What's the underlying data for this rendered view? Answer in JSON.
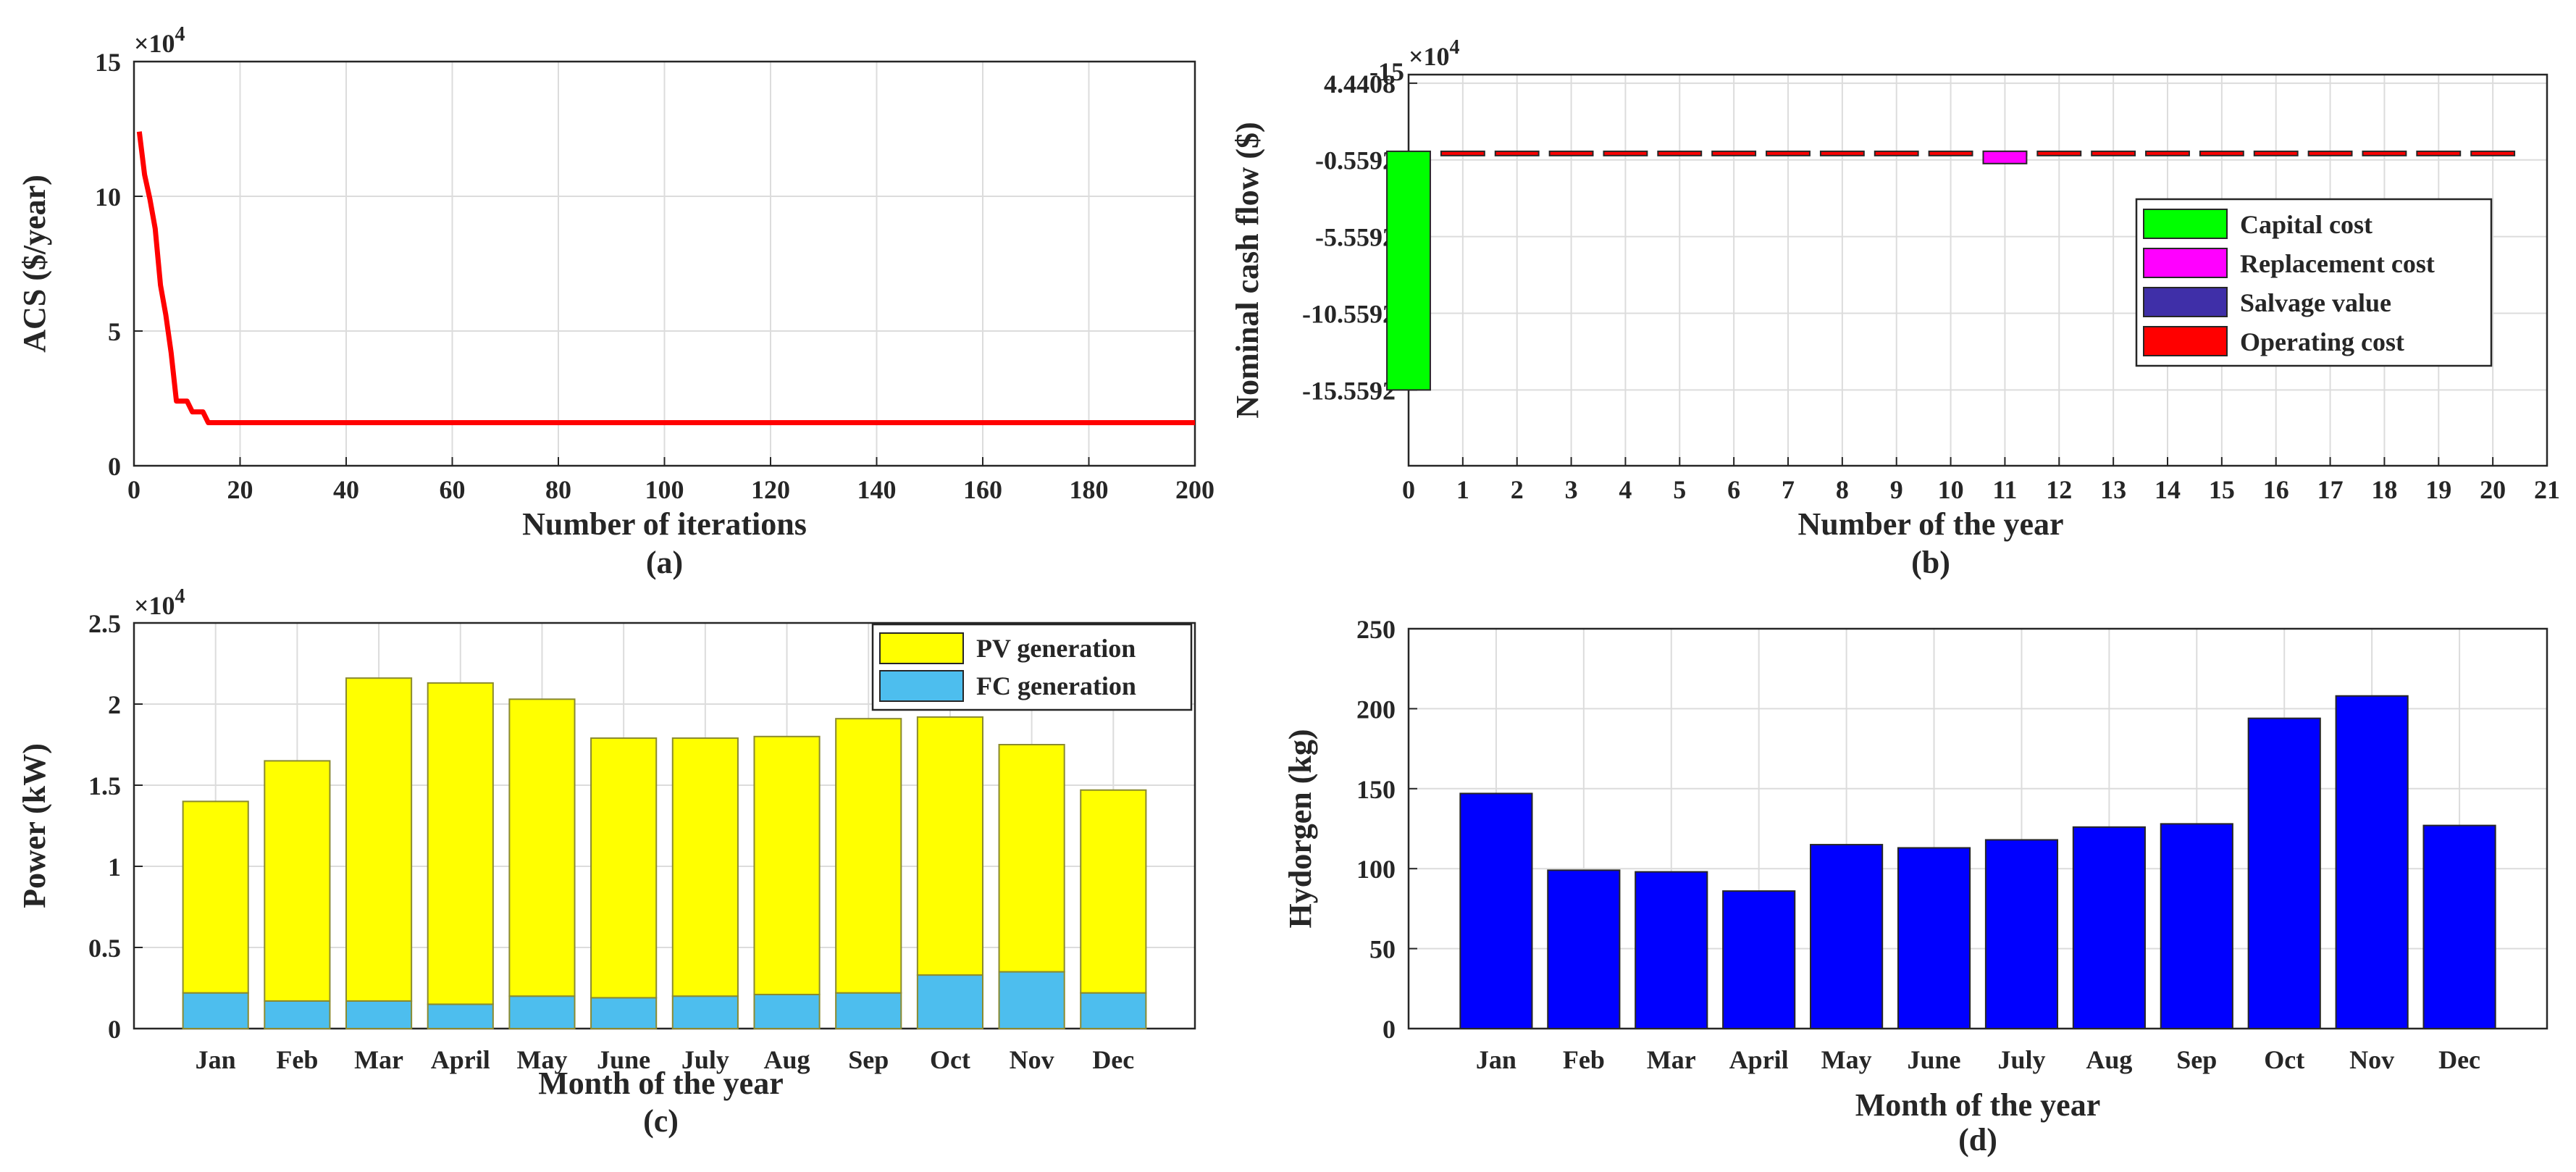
{
  "chart_data": [
    {
      "id": "a",
      "type": "line",
      "caption": "(a)",
      "xlabel": "Number of iterations",
      "ylabel": "ACS ($/year)",
      "exponent": "×10",
      "exponent_power": "4",
      "xlim": [
        0,
        200
      ],
      "ylim": [
        0,
        15
      ],
      "xticks": [
        "0",
        "20",
        "40",
        "60",
        "80",
        "100",
        "120",
        "140",
        "160",
        "180",
        "200"
      ],
      "yticks": [
        "0",
        "5",
        "10",
        "15"
      ],
      "color": "#ff0000",
      "series": [
        {
          "name": "ACS",
          "x": [
            1,
            2,
            3,
            4,
            5,
            6,
            7,
            8,
            9,
            10,
            11,
            12,
            13,
            14,
            15,
            16,
            200
          ],
          "y": [
            12.4,
            10.8,
            9.9,
            8.8,
            6.7,
            5.6,
            4.2,
            2.4,
            2.4,
            2.4,
            2.0,
            2.0,
            2.0,
            1.6,
            1.6,
            1.6,
            1.6
          ]
        }
      ]
    },
    {
      "id": "b",
      "type": "bar",
      "caption": "(b)",
      "xlabel": "Number of the year",
      "ylabel": "Nominal cash flow ($)",
      "exponent": "×10",
      "exponent_power": "4",
      "xlim": [
        0,
        21
      ],
      "ylim": [
        -20.5,
        5
      ],
      "xticks": [
        "0",
        "1",
        "2",
        "3",
        "4",
        "5",
        "6",
        "7",
        "8",
        "9",
        "10",
        "11",
        "12",
        "13",
        "14",
        "15",
        "16",
        "17",
        "18",
        "19",
        "20",
        "21"
      ],
      "yticks": [
        {
          "v": 4.4408,
          "label": "4.4408"
        },
        {
          "v": -0.5592,
          "label": "-0.5592"
        },
        {
          "v": -5.5592,
          "label": "-5.5592"
        },
        {
          "v": -10.5592,
          "label": "-10.5592"
        },
        {
          "v": -15.5592,
          "label": "-15.5592"
        }
      ],
      "ytick_extra": "-15",
      "legend": [
        {
          "label": "Capital cost",
          "color": "#00ff00"
        },
        {
          "label": "Replacement cost",
          "color": "#ff00ff"
        },
        {
          "label": "Salvage value",
          "color": "#3f2fa8"
        },
        {
          "label": "Operating cost",
          "color": "#ff0000"
        }
      ],
      "capital": {
        "x": 0,
        "value": -15.5592
      },
      "replacement": {
        "x": 11,
        "value": -0.8
      },
      "operating": {
        "x_start": 1,
        "x_end": 20,
        "value": -0.28
      }
    },
    {
      "id": "c",
      "type": "bar",
      "stacked": true,
      "caption": "(c)",
      "xlabel": "Month of the year",
      "ylabel": "Power (kW)",
      "exponent": "×10",
      "exponent_power": "4",
      "ylim": [
        0,
        2.5
      ],
      "yticks": [
        "0",
        "0.5",
        "1",
        "1.5",
        "2",
        "2.5"
      ],
      "categories": [
        "Jan",
        "Feb",
        "Mar",
        "April",
        "May",
        "June",
        "July",
        "Aug",
        "Sep",
        "Oct",
        "Nov",
        "Dec"
      ],
      "series": [
        {
          "name": "FC generation",
          "color": "#4dbeee",
          "values": [
            0.22,
            0.17,
            0.17,
            0.15,
            0.2,
            0.19,
            0.2,
            0.21,
            0.22,
            0.33,
            0.35,
            0.22
          ]
        },
        {
          "name": "PV generation",
          "color": "#ffff00",
          "values": [
            1.18,
            1.48,
            1.99,
            1.98,
            1.83,
            1.6,
            1.59,
            1.59,
            1.69,
            1.59,
            1.4,
            1.25
          ]
        }
      ],
      "legend": [
        "PV generation",
        "FC generation"
      ]
    },
    {
      "id": "d",
      "type": "bar",
      "caption": "(d)",
      "xlabel": "Month of the  year",
      "ylabel": "Hydorgen (kg)",
      "ylim": [
        0,
        250
      ],
      "yticks": [
        "0",
        "50",
        "100",
        "150",
        "200",
        "250"
      ],
      "categories": [
        "Jan",
        "Feb",
        "Mar",
        "April",
        "May",
        "June",
        "July",
        "Aug",
        "Sep",
        "Oct",
        "Nov",
        "Dec"
      ],
      "color": "#0000ff",
      "values": [
        147,
        99,
        98,
        86,
        115,
        113,
        118,
        126,
        128,
        194,
        208,
        127
      ]
    }
  ]
}
